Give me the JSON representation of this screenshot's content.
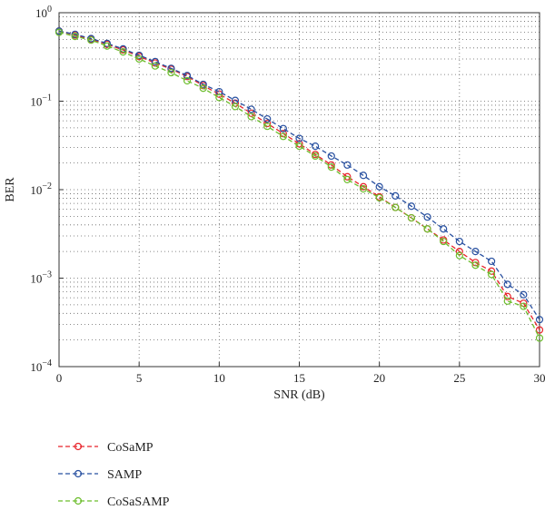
{
  "chart_data": {
    "type": "line",
    "title": "",
    "xlabel": "SNR (dB)",
    "ylabel": "BER",
    "x_scale": "linear",
    "y_scale": "log",
    "xlim": [
      0,
      30
    ],
    "ylim": [
      0.0001,
      1
    ],
    "x_ticks": [
      0,
      5,
      10,
      15,
      20,
      25,
      30
    ],
    "x_tick_labels": [
      "0",
      "5",
      "10",
      "15",
      "20",
      "25",
      "30"
    ],
    "y_ticks": [
      1,
      0.1,
      0.01,
      0.001,
      0.0001
    ],
    "y_tick_labels": [
      {
        "base": "10",
        "exp": "0"
      },
      {
        "base": "10",
        "exp": "−1"
      },
      {
        "base": "10",
        "exp": "−2"
      },
      {
        "base": "10",
        "exp": "−3"
      },
      {
        "base": "10",
        "exp": "−4"
      }
    ],
    "grid": true,
    "legend_position": "below-left",
    "x": [
      0,
      1,
      2,
      3,
      4,
      5,
      6,
      7,
      8,
      9,
      10,
      11,
      12,
      13,
      14,
      15,
      16,
      17,
      18,
      19,
      20,
      21,
      22,
      23,
      24,
      25,
      26,
      27,
      28,
      29,
      30
    ],
    "series": [
      {
        "name": "CoSaMP",
        "color": "#e8232a",
        "values": [
          0.62,
          0.56,
          0.5,
          0.44,
          0.38,
          0.32,
          0.27,
          0.23,
          0.19,
          0.15,
          0.12,
          0.095,
          0.073,
          0.056,
          0.043,
          0.033,
          0.025,
          0.019,
          0.014,
          0.0108,
          0.0083,
          0.0063,
          0.0048,
          0.0036,
          0.0027,
          0.002,
          0.0015,
          0.0012,
          0.00062,
          0.00052,
          0.00026
        ]
      },
      {
        "name": "SAMP",
        "color": "#2850a0",
        "values": [
          0.62,
          0.57,
          0.51,
          0.45,
          0.39,
          0.33,
          0.28,
          0.235,
          0.195,
          0.155,
          0.128,
          0.102,
          0.081,
          0.063,
          0.049,
          0.038,
          0.031,
          0.024,
          0.019,
          0.0145,
          0.0108,
          0.0085,
          0.0065,
          0.0049,
          0.0036,
          0.0026,
          0.002,
          0.00155,
          0.00085,
          0.00065,
          0.00034
        ]
      },
      {
        "name": "CoSaSAMP",
        "color": "#6cbd2c",
        "values": [
          0.6,
          0.54,
          0.49,
          0.42,
          0.36,
          0.3,
          0.25,
          0.21,
          0.17,
          0.14,
          0.11,
          0.087,
          0.067,
          0.052,
          0.04,
          0.031,
          0.024,
          0.018,
          0.013,
          0.0102,
          0.0081,
          0.0063,
          0.0048,
          0.0036,
          0.0026,
          0.0018,
          0.0014,
          0.0011,
          0.00055,
          0.00048,
          0.00021
        ]
      }
    ]
  }
}
